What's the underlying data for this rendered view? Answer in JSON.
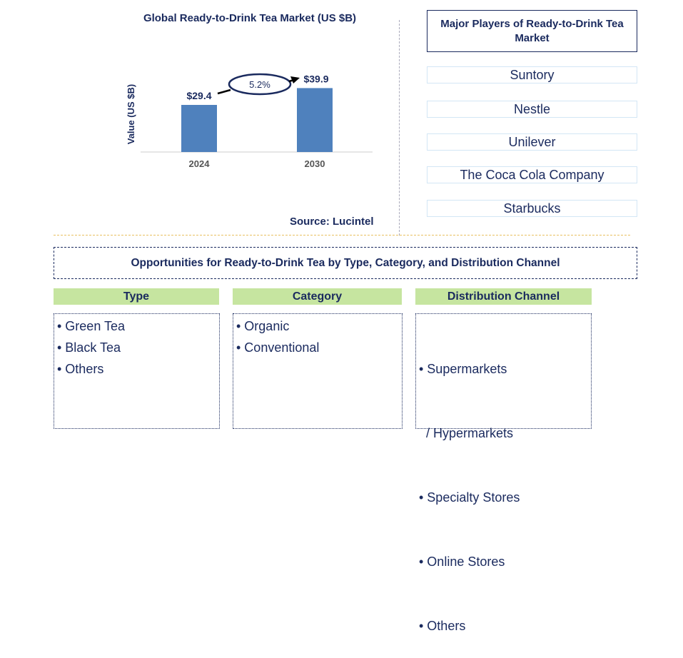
{
  "chart_data": {
    "type": "bar",
    "title": "Global Ready-to-Drink Tea Market (US $B)",
    "ylabel": "Value (US $B)",
    "categories": [
      "2024",
      "2030"
    ],
    "values": [
      29.4,
      39.9
    ],
    "data_labels": [
      "$29.4",
      "$39.9"
    ],
    "annotation": "5.2%",
    "bar_color": "#4f81bd",
    "ylim": [
      0,
      45
    ],
    "grid": false
  },
  "source": "Source: Lucintel",
  "players": {
    "title": "Major Players of Ready-to-Drink Tea Market",
    "items": [
      "Suntory",
      "Nestle",
      "Unilever",
      "The Coca Cola Company",
      "Starbucks"
    ]
  },
  "opportunities": {
    "title": "Opportunities for Ready-to-Drink Tea by Type, Category, and Distribution Channel",
    "columns": [
      {
        "header": "Type",
        "items": [
          "• Green Tea",
          "• Black Tea",
          "• Others"
        ]
      },
      {
        "header": "Category",
        "items": [
          "• Organic",
          "• Conventional"
        ]
      },
      {
        "header": "Distribution Channel",
        "items": [
          "• Supermarkets",
          "  / Hypermarkets",
          "• Specialty Stores",
          "• Online Stores",
          "• Others"
        ]
      }
    ]
  }
}
